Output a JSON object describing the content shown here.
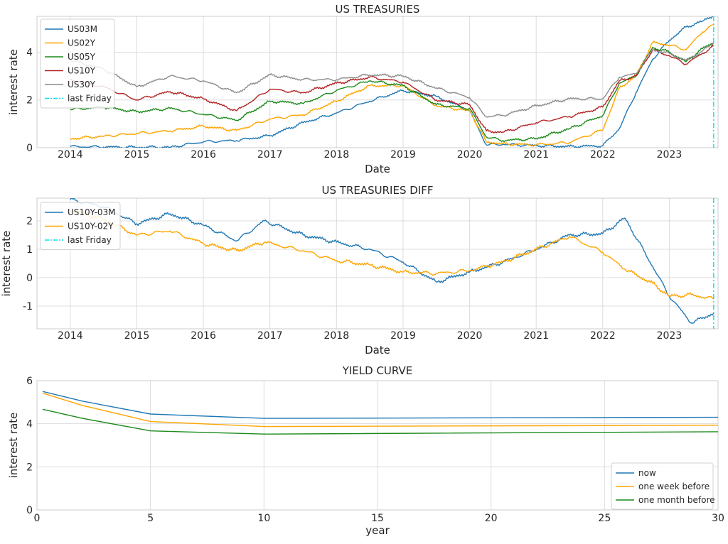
{
  "chart_data": [
    {
      "type": "line",
      "title": "US TREASURIES",
      "xlabel": "Date",
      "ylabel": "interest rate",
      "xlim": [
        "2013-07-01",
        "2023-09-25"
      ],
      "ylim": [
        0,
        5.5
      ],
      "xticks": [
        "2014",
        "2015",
        "2016",
        "2017",
        "2018",
        "2019",
        "2020",
        "2021",
        "2022",
        "2023"
      ],
      "yticks": [
        "0",
        "2",
        "4"
      ],
      "grid": true,
      "legend_position": "upper-left",
      "colors": {
        "US03M": "#1f77b4",
        "US02Y": "#ffa500",
        "US05Y": "#1a8a1a",
        "US10Y": "#b22222",
        "US30Y": "#8c8c8c",
        "last Friday": "#00e5ee"
      },
      "x": [
        "2014-01",
        "2014-07",
        "2015-01",
        "2015-07",
        "2016-01",
        "2016-07",
        "2017-01",
        "2017-07",
        "2018-01",
        "2018-07",
        "2019-01",
        "2019-07",
        "2020-01",
        "2020-04",
        "2020-07",
        "2021-01",
        "2021-07",
        "2022-01",
        "2022-04",
        "2022-07",
        "2022-10",
        "2023-01",
        "2023-04",
        "2023-07",
        "2023-09"
      ],
      "series": [
        {
          "name": "US03M",
          "values": [
            0.05,
            0.03,
            0.02,
            0.02,
            0.25,
            0.3,
            0.5,
            1.05,
            1.45,
            1.95,
            2.4,
            2.15,
            1.55,
            0.12,
            0.14,
            0.09,
            0.05,
            0.08,
            0.8,
            2.3,
            3.7,
            4.5,
            5.05,
            5.3,
            5.55
          ]
        },
        {
          "name": "US02Y",
          "values": [
            0.38,
            0.48,
            0.6,
            0.7,
            0.9,
            0.72,
            1.2,
            1.38,
            1.95,
            2.6,
            2.6,
            1.75,
            1.55,
            0.25,
            0.16,
            0.12,
            0.22,
            0.75,
            2.5,
            3.0,
            4.4,
            4.3,
            4.1,
            4.85,
            5.15
          ]
        },
        {
          "name": "US05Y",
          "values": [
            1.6,
            1.7,
            1.5,
            1.65,
            1.4,
            1.15,
            1.95,
            1.85,
            2.4,
            2.8,
            2.6,
            1.8,
            1.65,
            0.45,
            0.3,
            0.38,
            0.8,
            1.35,
            2.7,
            3.0,
            4.2,
            4.0,
            3.6,
            4.15,
            4.4
          ]
        },
        {
          "name": "US10Y",
          "values": [
            2.85,
            2.55,
            2.0,
            2.35,
            2.05,
            1.55,
            2.45,
            2.3,
            2.7,
            2.95,
            2.75,
            2.0,
            1.8,
            0.7,
            0.65,
            1.05,
            1.3,
            1.7,
            2.8,
            3.0,
            4.1,
            3.85,
            3.5,
            3.95,
            4.25
          ]
        },
        {
          "name": "US30Y",
          "values": [
            3.65,
            3.3,
            2.55,
            3.0,
            2.8,
            2.3,
            3.05,
            2.85,
            2.85,
            3.05,
            3.0,
            2.5,
            2.1,
            1.3,
            1.35,
            1.75,
            2.05,
            2.05,
            2.95,
            3.1,
            4.1,
            3.95,
            3.65,
            4.05,
            4.4
          ]
        }
      ],
      "vline": {
        "name": "last Friday",
        "x": "2023-09-01"
      }
    },
    {
      "type": "line",
      "title": "US TREASURIES DIFF",
      "xlabel": "Date",
      "ylabel": "interest rate",
      "xlim": [
        "2013-07-01",
        "2023-09-25"
      ],
      "ylim": [
        -1.8,
        2.8
      ],
      "xticks": [
        "2014",
        "2015",
        "2016",
        "2017",
        "2018",
        "2019",
        "2020",
        "2021",
        "2022",
        "2023"
      ],
      "yticks": [
        "-1",
        "0",
        "1",
        "2"
      ],
      "grid": true,
      "legend_position": "upper-left",
      "colors": {
        "US10Y-03M": "#1f77b4",
        "US10Y-02Y": "#ffa500",
        "last Friday": "#00e5ee"
      },
      "x": [
        "2014-01",
        "2014-07",
        "2015-01",
        "2015-07",
        "2016-01",
        "2016-07",
        "2016-12",
        "2017-07",
        "2018-01",
        "2018-07",
        "2019-01",
        "2019-07",
        "2020-01",
        "2020-07",
        "2021-01",
        "2021-07",
        "2022-01",
        "2022-05",
        "2022-10",
        "2023-01",
        "2023-05",
        "2023-09"
      ],
      "series": [
        {
          "name": "US10Y-03M",
          "values": [
            2.75,
            2.5,
            1.9,
            2.25,
            1.85,
            1.3,
            2.0,
            1.5,
            1.25,
            1.0,
            0.55,
            -0.15,
            0.2,
            0.55,
            1.0,
            1.5,
            1.55,
            2.1,
            0.4,
            -0.65,
            -1.6,
            -1.25
          ]
        },
        {
          "name": "US10Y-02Y",
          "values": [
            2.4,
            2.05,
            1.5,
            1.65,
            1.2,
            0.95,
            1.25,
            0.95,
            0.6,
            0.45,
            0.2,
            0.15,
            0.25,
            0.55,
            1.0,
            1.45,
            0.9,
            0.3,
            -0.2,
            -0.65,
            -0.6,
            -0.75
          ]
        }
      ],
      "vline": {
        "name": "last Friday",
        "x": "2023-09-01"
      }
    },
    {
      "type": "line",
      "title": "YIELD CURVE",
      "xlabel": "year",
      "ylabel": "interest rate",
      "xlim": [
        0,
        30
      ],
      "ylim": [
        0,
        6
      ],
      "xticks": [
        "0",
        "5",
        "10",
        "15",
        "20",
        "25",
        "30"
      ],
      "yticks": [
        "0",
        "2",
        "4",
        "6"
      ],
      "grid": true,
      "legend_position": "lower-right",
      "colors": {
        "now": "#1f77b4",
        "one week before": "#ffa500",
        "one month before": "#1a8a1a"
      },
      "x": [
        0.25,
        2,
        5,
        10,
        30
      ],
      "series": [
        {
          "name": "now",
          "values": [
            5.5,
            5.05,
            4.45,
            4.25,
            4.3
          ]
        },
        {
          "name": "one week before",
          "values": [
            5.42,
            4.85,
            4.1,
            3.87,
            3.93
          ]
        },
        {
          "name": "one month before",
          "values": [
            4.67,
            4.25,
            3.67,
            3.52,
            3.63
          ]
        }
      ]
    }
  ]
}
